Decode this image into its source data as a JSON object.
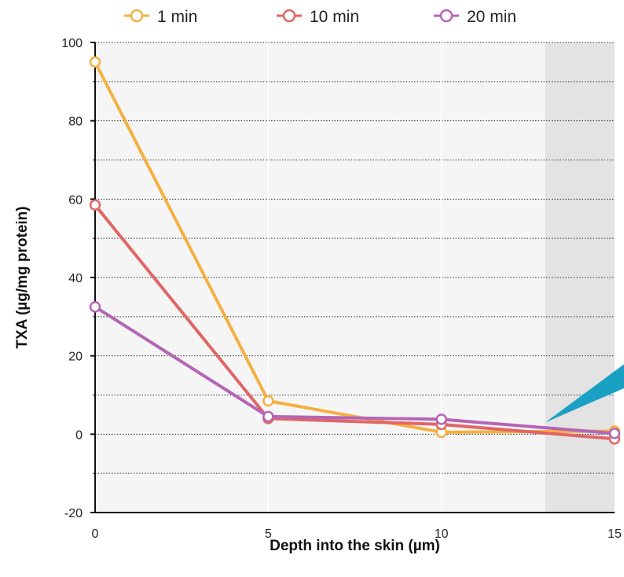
{
  "chart_data": {
    "type": "line",
    "title": "",
    "xlabel": "Depth into the skin (µm)",
    "ylabel": "TXA (µg/mg protein)",
    "x": [
      0,
      5,
      10,
      15
    ],
    "x_tick_labels": [
      "0",
      "5",
      "10",
      "15"
    ],
    "xlim": [
      0,
      15
    ],
    "ylim": [
      -20,
      100
    ],
    "y_ticks": [
      -20,
      0,
      20,
      40,
      60,
      80,
      100
    ],
    "y_tick_labels": [
      "-20",
      "0",
      "20",
      "40",
      "60",
      "80",
      "100"
    ],
    "grid": "horizontal dotted, every 10",
    "legend_position": "top",
    "shaded_region": {
      "x_from": 13,
      "x_to": 15,
      "color": "#e3e3e3"
    },
    "plot_background": "#f5f5f5",
    "series": [
      {
        "name": "1 min",
        "color": "#f5b041",
        "values": [
          95,
          8.5,
          0.5,
          0.8
        ]
      },
      {
        "name": "10 min",
        "color": "#e06666",
        "values": [
          58.5,
          4.0,
          2.5,
          -1.2
        ]
      },
      {
        "name": "20 min",
        "color": "#b565b5",
        "values": [
          32.5,
          4.5,
          3.8,
          0.2
        ]
      }
    ],
    "arrow_color": "#1aa0c2"
  }
}
